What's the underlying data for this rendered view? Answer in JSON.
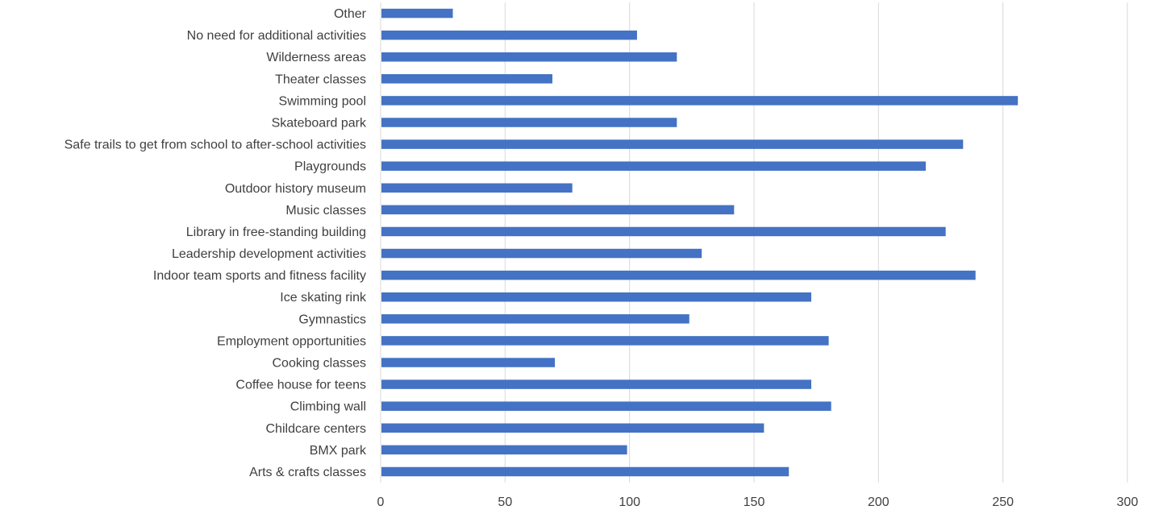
{
  "chart_data": {
    "type": "bar",
    "orientation": "horizontal",
    "title": "",
    "xlabel": "",
    "ylabel": "",
    "categories": [
      "Arts & crafts classes",
      "BMX park",
      "Childcare centers",
      "Climbing wall",
      "Coffee house for teens",
      "Cooking classes",
      "Employment opportunities",
      "Gymnastics",
      "Ice skating rink",
      "Indoor team sports and fitness facility",
      "Leadership development activities",
      "Library in free-standing building",
      "Music classes",
      "Outdoor history museum",
      "Playgrounds",
      "Safe trails to get from school to after-school activities",
      "Skateboard park",
      "Swimming pool",
      "Theater classes",
      "Wilderness areas",
      "No need for additional activities",
      "Other"
    ],
    "values": [
      164,
      99,
      154,
      181,
      173,
      70,
      180,
      124,
      173,
      239,
      129,
      227,
      142,
      77,
      219,
      234,
      119,
      256,
      69,
      119,
      103,
      29
    ],
    "xlim": [
      0,
      300
    ],
    "x_ticks": [
      0,
      50,
      100,
      150,
      200,
      250,
      300
    ],
    "x_tick_labels": [
      "0",
      "50",
      "100",
      "150",
      "200",
      "250",
      "300"
    ],
    "grid": "vertical",
    "legend": "none",
    "colors": {
      "bar": "#4472C4",
      "grid": "#D9D9D9",
      "text": "#404040"
    }
  }
}
